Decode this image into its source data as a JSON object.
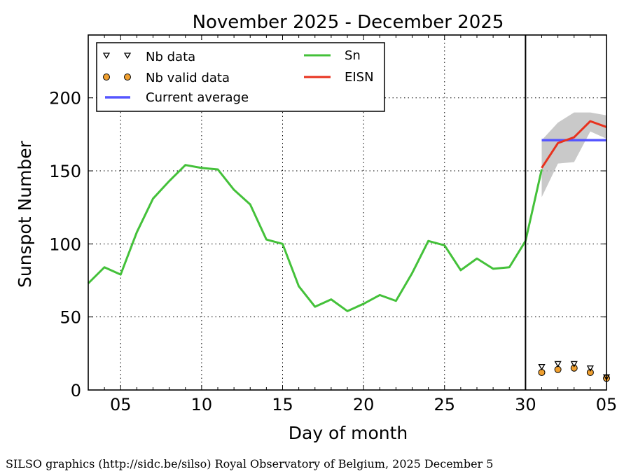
{
  "chart_data": {
    "type": "line",
    "title": "November 2025 - December 2025",
    "xlabel": "Day of month",
    "ylabel": "Sunspot Number",
    "ylim": [
      0,
      243
    ],
    "y_ticks": [
      0,
      50,
      100,
      150,
      200
    ],
    "x_tick_labels": [
      "05",
      "10",
      "15",
      "20",
      "25",
      "30",
      "05"
    ],
    "grid": true,
    "legend_position": "top-left",
    "month_divider_label": "30",
    "legend": {
      "nb_data": "Nb data",
      "nb_valid_data": "Nb valid data",
      "current_average": "Current average",
      "sn": "Sn",
      "eisn": "EISN"
    },
    "colors": {
      "sn": "#44c13a",
      "eisn": "#e8321e",
      "current_average": "#5555ff",
      "valid_marker": "#f0a030",
      "band": "#bbbbbb"
    },
    "series": [
      {
        "name": "Sn",
        "points": [
          [
            "Nov 03",
            73
          ],
          [
            "Nov 04",
            84
          ],
          [
            "Nov 05",
            79
          ],
          [
            "Nov 06",
            108
          ],
          [
            "Nov 07",
            131
          ],
          [
            "Nov 08",
            143
          ],
          [
            "Nov 09",
            154
          ],
          [
            "Nov 10",
            152
          ],
          [
            "Nov 11",
            151
          ],
          [
            "Nov 12",
            137
          ],
          [
            "Nov 13",
            127
          ],
          [
            "Nov 14",
            103
          ],
          [
            "Nov 15",
            100
          ],
          [
            "Nov 16",
            71
          ],
          [
            "Nov 17",
            57
          ],
          [
            "Nov 18",
            62
          ],
          [
            "Nov 19",
            54
          ],
          [
            "Nov 20",
            59
          ],
          [
            "Nov 21",
            65
          ],
          [
            "Nov 22",
            61
          ],
          [
            "Nov 23",
            80
          ],
          [
            "Nov 24",
            102
          ],
          [
            "Nov 25",
            99
          ],
          [
            "Nov 26",
            82
          ],
          [
            "Nov 27",
            90
          ],
          [
            "Nov 28",
            83
          ],
          [
            "Nov 29",
            84
          ],
          [
            "Nov 30",
            102
          ],
          [
            "Dec 01",
            151
          ]
        ]
      },
      {
        "name": "EISN",
        "points": [
          [
            "Dec 01",
            152
          ],
          [
            "Dec 02",
            169
          ],
          [
            "Dec 03",
            173
          ],
          [
            "Dec 04",
            184
          ],
          [
            "Dec 05",
            180
          ]
        ],
        "band_upper": [
          171,
          183,
          190,
          190,
          188
        ],
        "band_lower": [
          132,
          155,
          156,
          177,
          172
        ]
      },
      {
        "name": "Current average",
        "points": [
          [
            "Dec 01",
            171
          ],
          [
            "Dec 05",
            171
          ]
        ]
      },
      {
        "name": "Nb data",
        "points": [
          [
            "Dec 01",
            16
          ],
          [
            "Dec 02",
            18
          ],
          [
            "Dec 03",
            18
          ],
          [
            "Dec 04",
            15
          ],
          [
            "Dec 05",
            9
          ]
        ]
      },
      {
        "name": "Nb valid data",
        "points": [
          [
            "Dec 01",
            12
          ],
          [
            "Dec 02",
            14
          ],
          [
            "Dec 03",
            15
          ],
          [
            "Dec 04",
            12
          ],
          [
            "Dec 05",
            8
          ]
        ]
      }
    ]
  },
  "footer": {
    "credit": "SILSO graphics (http://sidc.be/silso) Royal Observatory of Belgium, 2025 December 5"
  }
}
